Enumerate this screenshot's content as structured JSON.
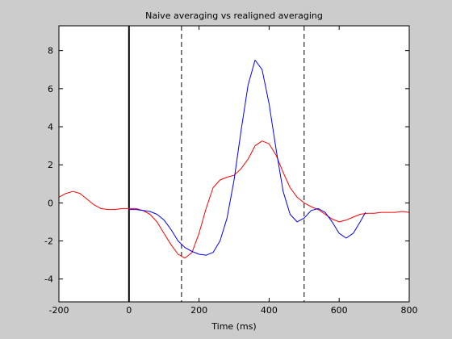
{
  "chart_data": {
    "type": "line",
    "title": "Naive averaging vs realigned averaging",
    "xlabel": "Time (ms)",
    "ylabel": "",
    "xlim": [
      -200,
      800
    ],
    "ylim": [
      -5.2,
      9.3
    ],
    "xticks": [
      -200,
      0,
      200,
      400,
      600,
      800
    ],
    "yticks": [
      -4,
      -2,
      0,
      2,
      4,
      6,
      8
    ],
    "xtick_labels": [
      "-200",
      "0",
      "200",
      "400",
      "600",
      "800"
    ],
    "ytick_labels": [
      "-4",
      "-2",
      "0",
      "2",
      "4",
      "6",
      "8"
    ],
    "grid": false,
    "legend": "none",
    "vertical_lines": [
      {
        "x": 0,
        "style": "solid",
        "color": "#000000"
      },
      {
        "x": 150,
        "style": "dashed",
        "color": "#000000"
      },
      {
        "x": 500,
        "style": "dashed",
        "color": "#000000"
      }
    ],
    "series": [
      {
        "color": "#ff0000",
        "x": [
          -200,
          -180,
          -160,
          -140,
          -120,
          -100,
          -80,
          -60,
          -40,
          -20,
          0,
          20,
          40,
          60,
          80,
          100,
          120,
          140,
          160,
          180,
          200,
          220,
          240,
          260,
          280,
          300,
          320,
          340,
          360,
          380,
          400,
          420,
          440,
          460,
          480,
          500,
          520,
          540,
          560,
          580,
          600,
          620,
          640,
          660,
          680,
          700,
          720,
          740,
          760,
          780,
          800
        ],
        "y": [
          0.3,
          0.5,
          0.6,
          0.5,
          0.2,
          -0.1,
          -0.3,
          -0.35,
          -0.35,
          -0.3,
          -0.3,
          -0.3,
          -0.4,
          -0.6,
          -1.0,
          -1.6,
          -2.2,
          -2.7,
          -2.9,
          -2.6,
          -1.6,
          -0.3,
          0.8,
          1.2,
          1.35,
          1.45,
          1.8,
          2.3,
          3.0,
          3.25,
          3.1,
          2.5,
          1.6,
          0.8,
          0.3,
          0.0,
          -0.2,
          -0.35,
          -0.6,
          -0.85,
          -1.0,
          -0.9,
          -0.75,
          -0.6,
          -0.55,
          -0.55,
          -0.5,
          -0.5,
          -0.5,
          -0.45,
          -0.5
        ]
      },
      {
        "color": "#0000ff",
        "x": [
          0,
          20,
          40,
          60,
          80,
          100,
          120,
          140,
          160,
          180,
          200,
          220,
          240,
          260,
          280,
          300,
          320,
          340,
          360,
          380,
          400,
          420,
          440,
          460,
          480,
          500,
          520,
          540,
          560,
          580,
          600,
          620,
          640,
          660,
          675
        ],
        "y": [
          -0.35,
          -0.35,
          -0.4,
          -0.45,
          -0.6,
          -0.9,
          -1.4,
          -2.0,
          -2.35,
          -2.55,
          -2.7,
          -2.75,
          -2.6,
          -2.0,
          -0.8,
          1.2,
          3.8,
          6.2,
          7.5,
          7.0,
          5.2,
          2.8,
          0.6,
          -0.6,
          -1.0,
          -0.8,
          -0.4,
          -0.3,
          -0.5,
          -1.0,
          -1.6,
          -1.85,
          -1.6,
          -1.0,
          -0.5
        ]
      }
    ]
  }
}
